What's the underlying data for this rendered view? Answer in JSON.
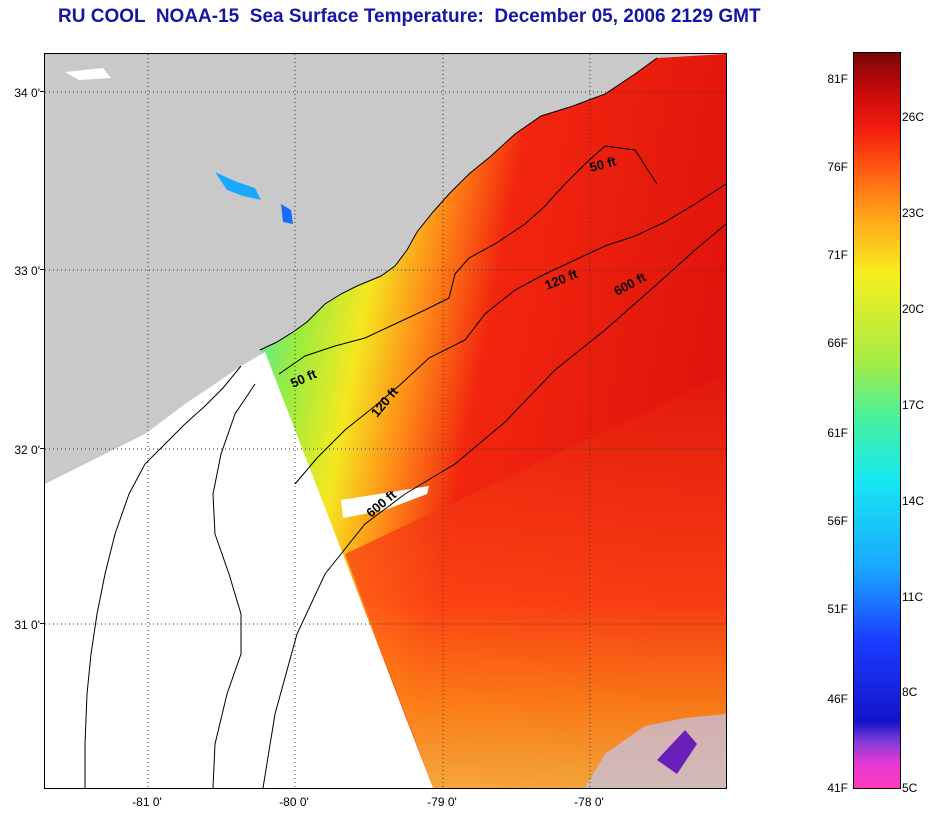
{
  "header": {
    "title": "RU COOL  NOAA-15  Sea Surface Temperature:  December 05, 2006 2129 GMT"
  },
  "map": {
    "lat_labels": [
      "34 0'",
      "33 0'",
      "32 0'",
      "31 0'"
    ],
    "lon_labels": [
      "-81 0'",
      "-80 0'",
      "-79 0'",
      "-78 0'"
    ],
    "contours": [
      "50 ft",
      "120 ft",
      "600 ft",
      "50 ft",
      "120 ft",
      "600 ft"
    ],
    "colors": {
      "land": "#c9c9c9",
      "no_data": "#ffffff",
      "coast_line": "#000000",
      "grid_line": "#333333"
    }
  },
  "colorbar": {
    "fahrenheit_labels": [
      "81F",
      "76F",
      "71F",
      "66F",
      "61F",
      "56F",
      "51F",
      "46F",
      "41F"
    ],
    "celsius_labels": [
      "26C",
      "23C",
      "20C",
      "17C",
      "14C",
      "11C",
      "8C",
      "5C"
    ]
  }
}
